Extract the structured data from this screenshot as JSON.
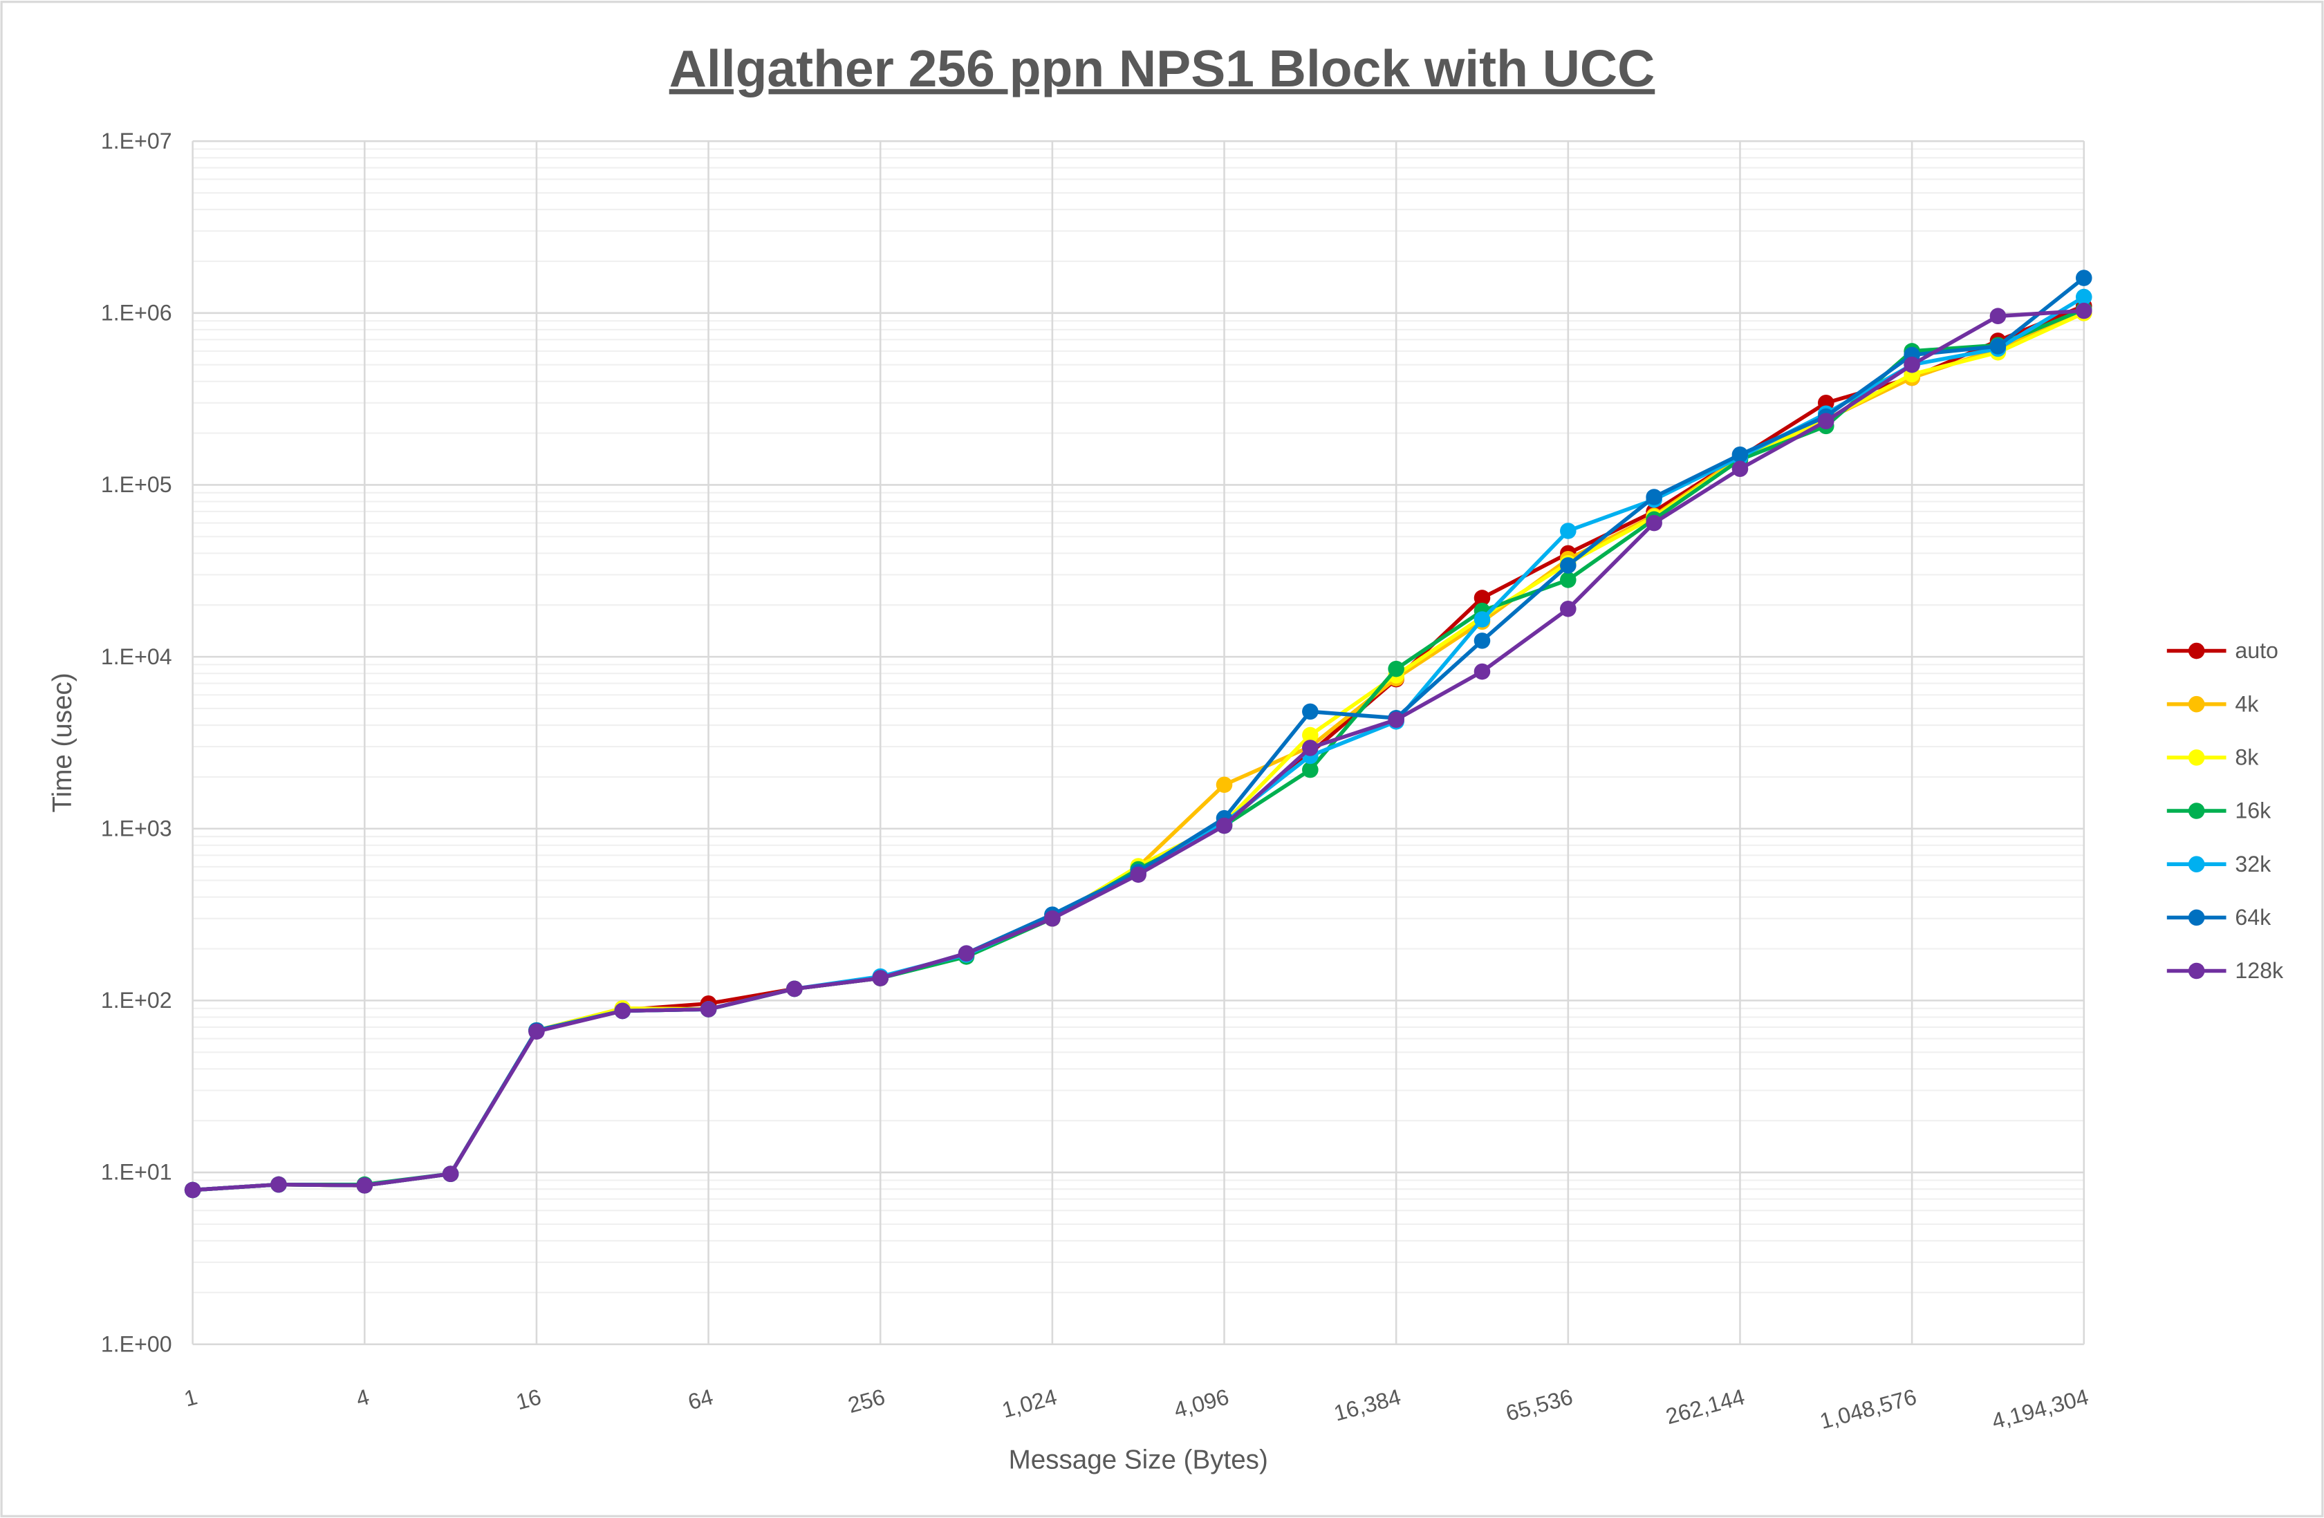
{
  "chart_data": {
    "type": "line",
    "title": "Allgather 256 ppn NPS1 Block with UCC",
    "xlabel": "Message Size (Bytes)",
    "ylabel": "Time (usec)",
    "x_scale": "log2",
    "y_scale": "log10",
    "xlim": [
      1,
      4194304
    ],
    "ylim": [
      1,
      10000000
    ],
    "grid": true,
    "legend_position": "right",
    "x_tick_labels": [
      "1",
      "4",
      "16",
      "64",
      "256",
      "1,024",
      "4,096",
      "16,384",
      "65,536",
      "262,144",
      "1,048,576",
      "4,194,304"
    ],
    "x_tick_values": [
      1,
      4,
      16,
      64,
      256,
      1024,
      4096,
      16384,
      65536,
      262144,
      1048576,
      4194304
    ],
    "y_tick_labels": [
      "1.E+00",
      "1.E+01",
      "1.E+02",
      "1.E+03",
      "1.E+04",
      "1.E+05",
      "1.E+06",
      "1.E+07"
    ],
    "x": [
      1,
      2,
      4,
      8,
      16,
      32,
      64,
      128,
      256,
      512,
      1024,
      2048,
      4096,
      8192,
      16384,
      32768,
      65536,
      131072,
      262144,
      524288,
      1048576,
      2097152,
      4194304
    ],
    "series": [
      {
        "name": "auto",
        "color": "#C00000",
        "values": [
          7.9,
          8.5,
          8.4,
          9.8,
          67,
          88,
          96,
          117,
          135,
          185,
          300,
          560,
          1060,
          2750,
          7400,
          22000,
          40000,
          70000,
          145000,
          300000,
          420000,
          690000,
          1100000
        ]
      },
      {
        "name": "4k",
        "color": "#FFC000",
        "values": [
          7.9,
          8.5,
          8.4,
          9.8,
          67,
          90,
          89,
          117,
          135,
          185,
          300,
          600,
          1800,
          3000,
          7500,
          16000,
          37000,
          66000,
          145000,
          240000,
          420000,
          620000,
          1000000
        ]
      },
      {
        "name": "8k",
        "color": "#FFFF00",
        "values": [
          7.9,
          8.5,
          8.4,
          9.8,
          67,
          90,
          89,
          117,
          135,
          185,
          300,
          605,
          1080,
          3500,
          7800,
          17000,
          35000,
          65000,
          140000,
          240000,
          440000,
          590000,
          1000000
        ]
      },
      {
        "name": "16k",
        "color": "#00B050",
        "values": [
          7.9,
          8.5,
          8.5,
          9.8,
          67,
          87,
          89,
          117,
          135,
          180,
          300,
          580,
          1040,
          2200,
          8500,
          18500,
          28000,
          63000,
          140000,
          220000,
          600000,
          650000,
          1050000
        ]
      },
      {
        "name": "32k",
        "color": "#00B0F0",
        "values": [
          7.9,
          8.5,
          8.4,
          9.8,
          67,
          87,
          89,
          117,
          138,
          185,
          305,
          560,
          1080,
          2650,
          4200,
          16500,
          54000,
          82000,
          145000,
          260000,
          500000,
          620000,
          1240000
        ]
      },
      {
        "name": "64k",
        "color": "#0070C0",
        "values": [
          7.9,
          8.5,
          8.4,
          9.8,
          67,
          87,
          89,
          117,
          135,
          188,
          316,
          560,
          1150,
          4800,
          4400,
          12400,
          34000,
          85000,
          150000,
          250000,
          570000,
          640000,
          1600000
        ]
      },
      {
        "name": "128k",
        "color": "#7030A0",
        "values": [
          7.9,
          8.5,
          8.4,
          9.8,
          66,
          87,
          89,
          117,
          135,
          188,
          300,
          540,
          1040,
          2950,
          4300,
          8200,
          19000,
          60000,
          124000,
          235000,
          500000,
          960000,
          1030000
        ]
      }
    ]
  }
}
